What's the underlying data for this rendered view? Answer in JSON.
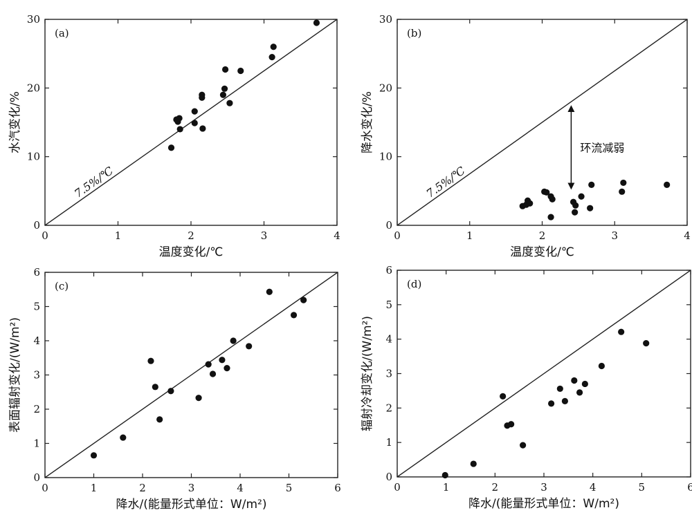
{
  "chart_data": [
    {
      "type": "scatter",
      "panel": "(a)",
      "xlabel": "温度变化/℃",
      "ylabel": "水汽变化/%",
      "xlim": [
        0,
        4
      ],
      "ylim": [
        0,
        30
      ],
      "xticks": [
        0,
        1,
        2,
        3,
        4
      ],
      "yticks": [
        0,
        10,
        20,
        30
      ],
      "reference_line": {
        "label": "7.5%/℃",
        "slope": 7.5
      },
      "points": [
        {
          "x": 1.73,
          "y": 11.3
        },
        {
          "x": 1.8,
          "y": 15.4
        },
        {
          "x": 1.82,
          "y": 15.1
        },
        {
          "x": 1.84,
          "y": 15.6
        },
        {
          "x": 1.85,
          "y": 14.0
        },
        {
          "x": 2.05,
          "y": 16.6
        },
        {
          "x": 2.05,
          "y": 14.9
        },
        {
          "x": 2.15,
          "y": 19.0
        },
        {
          "x": 2.15,
          "y": 18.6
        },
        {
          "x": 2.16,
          "y": 14.1
        },
        {
          "x": 2.44,
          "y": 19.0
        },
        {
          "x": 2.46,
          "y": 19.9
        },
        {
          "x": 2.47,
          "y": 22.7
        },
        {
          "x": 2.53,
          "y": 17.8
        },
        {
          "x": 2.68,
          "y": 22.5
        },
        {
          "x": 3.11,
          "y": 24.5
        },
        {
          "x": 3.13,
          "y": 26.0
        },
        {
          "x": 3.72,
          "y": 29.5
        }
      ]
    },
    {
      "type": "scatter",
      "panel": "(b)",
      "xlabel": "温度变化/℃",
      "ylabel": "降水变化/%",
      "xlim": [
        0,
        4
      ],
      "ylim": [
        0,
        30
      ],
      "xticks": [
        0,
        1,
        2,
        3,
        4
      ],
      "yticks": [
        0,
        10,
        20,
        30
      ],
      "reference_line": {
        "label": "7.5%/℃",
        "slope": 7.5
      },
      "annotation": {
        "text": "环流减弱",
        "x": 2.4,
        "y_from": 17.0,
        "y_to": 5.7
      },
      "points": [
        {
          "x": 1.73,
          "y": 2.8
        },
        {
          "x": 1.78,
          "y": 3.0
        },
        {
          "x": 1.8,
          "y": 3.6
        },
        {
          "x": 1.83,
          "y": 3.2
        },
        {
          "x": 2.03,
          "y": 4.9
        },
        {
          "x": 2.06,
          "y": 4.8
        },
        {
          "x": 2.12,
          "y": 4.2
        },
        {
          "x": 2.14,
          "y": 3.8
        },
        {
          "x": 2.12,
          "y": 1.2
        },
        {
          "x": 2.43,
          "y": 3.4
        },
        {
          "x": 2.46,
          "y": 2.9
        },
        {
          "x": 2.45,
          "y": 1.9
        },
        {
          "x": 2.54,
          "y": 4.2
        },
        {
          "x": 2.66,
          "y": 2.5
        },
        {
          "x": 2.68,
          "y": 5.9
        },
        {
          "x": 3.1,
          "y": 4.9
        },
        {
          "x": 3.12,
          "y": 6.2
        },
        {
          "x": 3.72,
          "y": 5.9
        }
      ]
    },
    {
      "type": "scatter",
      "panel": "(c)",
      "xlabel": "降水/(能量形式单位：W/m²)",
      "ylabel": "表面辐射变化/(W/m²)",
      "xlim": [
        0,
        6
      ],
      "ylim": [
        0,
        6
      ],
      "xticks": [
        0,
        1,
        2,
        3,
        4,
        5,
        6
      ],
      "yticks": [
        0,
        1,
        2,
        3,
        4,
        5,
        6
      ],
      "reference_line": {
        "label": "",
        "slope": 1
      },
      "points": [
        {
          "x": 1.0,
          "y": 0.65
        },
        {
          "x": 1.6,
          "y": 1.17
        },
        {
          "x": 2.17,
          "y": 3.41
        },
        {
          "x": 2.26,
          "y": 2.65
        },
        {
          "x": 2.35,
          "y": 1.7
        },
        {
          "x": 2.58,
          "y": 2.53
        },
        {
          "x": 3.15,
          "y": 2.33
        },
        {
          "x": 3.35,
          "y": 3.31
        },
        {
          "x": 3.44,
          "y": 3.03
        },
        {
          "x": 3.63,
          "y": 3.44
        },
        {
          "x": 3.73,
          "y": 3.2
        },
        {
          "x": 3.86,
          "y": 4.0
        },
        {
          "x": 4.18,
          "y": 3.84
        },
        {
          "x": 4.6,
          "y": 5.43
        },
        {
          "x": 5.1,
          "y": 4.75
        },
        {
          "x": 5.3,
          "y": 5.19
        }
      ]
    },
    {
      "type": "scatter",
      "panel": "(d)",
      "xlabel": "降水/(能量形式单位：W/m²)",
      "ylabel": "辐射冷却变化/(W/m²)",
      "xlim": [
        0,
        6
      ],
      "ylim": [
        0,
        6
      ],
      "xticks": [
        0,
        1,
        2,
        3,
        4,
        5,
        6
      ],
      "yticks": [
        0,
        1,
        2,
        3,
        4,
        5,
        6
      ],
      "reference_line": {
        "label": "",
        "slope": 1
      },
      "points": [
        {
          "x": 0.98,
          "y": 0.05
        },
        {
          "x": 1.56,
          "y": 0.38
        },
        {
          "x": 2.16,
          "y": 2.34
        },
        {
          "x": 2.25,
          "y": 1.49
        },
        {
          "x": 2.33,
          "y": 1.53
        },
        {
          "x": 2.57,
          "y": 0.92
        },
        {
          "x": 3.15,
          "y": 2.13
        },
        {
          "x": 3.33,
          "y": 2.56
        },
        {
          "x": 3.43,
          "y": 2.2
        },
        {
          "x": 3.62,
          "y": 2.8
        },
        {
          "x": 3.73,
          "y": 2.45
        },
        {
          "x": 3.84,
          "y": 2.7
        },
        {
          "x": 4.18,
          "y": 3.22
        },
        {
          "x": 4.58,
          "y": 4.21
        },
        {
          "x": 5.09,
          "y": 3.88
        }
      ]
    }
  ]
}
